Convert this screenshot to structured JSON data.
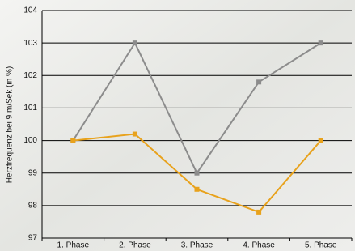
{
  "chart_data": {
    "type": "line",
    "y_label": "Herzfrequenz bei 9 m/Sek (in %)",
    "categories": [
      "1. Phase",
      "2. Phase",
      "3. Phase",
      "4. Phase",
      "5. Phase"
    ],
    "series": [
      {
        "color": "#8c8c8c",
        "values": [
          100,
          103,
          99,
          101.8,
          103
        ]
      },
      {
        "color": "#e8a21c",
        "values": [
          100,
          100.2,
          98.5,
          97.8,
          100
        ]
      }
    ],
    "ylim": [
      97,
      104
    ],
    "yticks": [
      97,
      98,
      99,
      100,
      101,
      102,
      103,
      104
    ],
    "grid": true
  }
}
